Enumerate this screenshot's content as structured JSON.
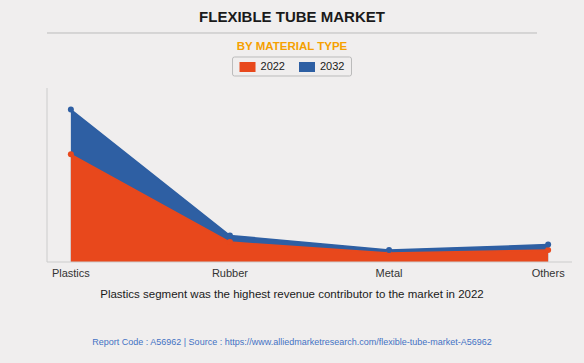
{
  "chart_data": {
    "type": "area",
    "title": "FLEXIBLE TUBE MARKET",
    "subtitle": "BY MATERIAL TYPE",
    "categories": [
      "Plastics",
      "Rubber",
      "Metal",
      "Others"
    ],
    "series": [
      {
        "name": "2022",
        "color": "#E8481C",
        "values": [
          6.5,
          1.2,
          0.55,
          0.72
        ],
        "marker": "circle"
      },
      {
        "name": "2032",
        "color": "#2E5FA3",
        "values": [
          9.2,
          1.6,
          0.72,
          1.05
        ],
        "marker": "circle"
      }
    ],
    "ylim": [
      0,
      10.5
    ],
    "tick_labels": "x",
    "grid": false,
    "legend": "top",
    "annotations": [
      "Plastics segment was the highest revenue contributor to the market in 2022",
      "Report Code : A56962  |  Source : https://www.alliedmarketresearch.com/flexible-tube-market-A56962"
    ]
  }
}
